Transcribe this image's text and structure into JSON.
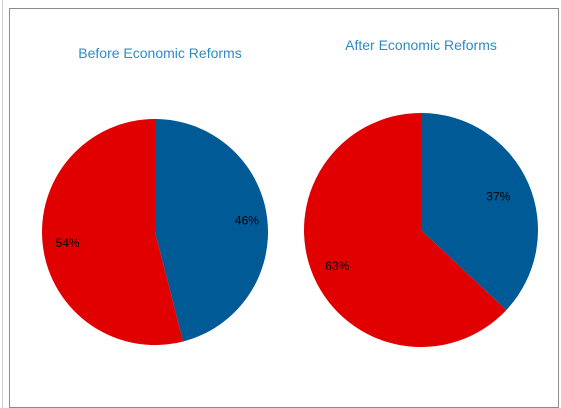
{
  "colors": {
    "title": "#2e8bc0",
    "slice_a": "#005a96",
    "slice_b": "#e00000",
    "border": "#8c8c8c"
  },
  "chart_data": [
    {
      "type": "pie",
      "title": "Before Economic Reforms",
      "categories": [
        "",
        ""
      ],
      "values": [
        46,
        54
      ],
      "labels": [
        "46%",
        "54%"
      ],
      "colors": [
        "#005a96",
        "#e00000"
      ],
      "legend": "none"
    },
    {
      "type": "pie",
      "title": "After Economic Reforms",
      "categories": [
        "",
        ""
      ],
      "values": [
        37,
        63
      ],
      "labels": [
        "37%",
        "63%"
      ],
      "colors": [
        "#005a96",
        "#e00000"
      ],
      "legend": "none"
    }
  ]
}
